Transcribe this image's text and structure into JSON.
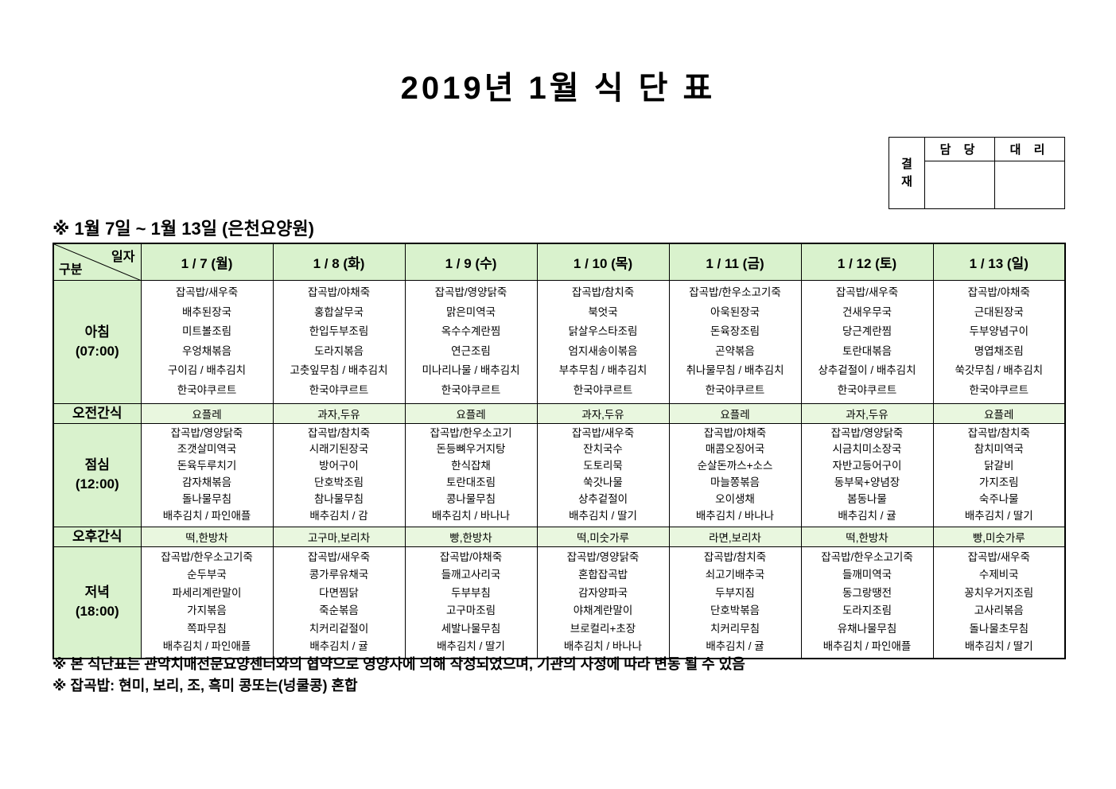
{
  "title": "2019년 1월 식 단 표",
  "approval": {
    "stamp_label": "결재",
    "columns": [
      "담 당",
      "대 리"
    ]
  },
  "subtitle": "※ 1월 7일 ~ 1월 13일 (은천요양원)",
  "colors": {
    "header_green": "#d9f2cd",
    "snack_green": "#e9f7df",
    "border": "#000000"
  },
  "table": {
    "corner_top": "일자",
    "corner_bottom": "구분",
    "days": [
      "1 / 7 (월)",
      "1 / 8 (화)",
      "1 / 9 (수)",
      "1 / 10 (목)",
      "1 / 11 (금)",
      "1 / 12 (토)",
      "1 / 13 (일)"
    ],
    "rows": [
      {
        "key": "breakfast",
        "type": "meal",
        "label": "아침",
        "time": "(07:00)",
        "cells": [
          [
            "잡곡밥/새우죽",
            "배추된장국",
            "미트볼조림",
            "우엉채볶음",
            "구이김 / 배추김치",
            "한국야쿠르트"
          ],
          [
            "잡곡밥/야채죽",
            "홍합살무국",
            "한입두부조림",
            "도라지볶음",
            "고춧잎무침 / 배추김치",
            "한국야쿠르트"
          ],
          [
            "잡곡밥/영양닭죽",
            "맑은미역국",
            "옥수수계란찜",
            "연근조림",
            "미나리나물 / 배추김치",
            "한국야쿠르트"
          ],
          [
            "잡곡밥/참치죽",
            "북엇국",
            "닭살우스타조림",
            "엄지새송이볶음",
            "부추무침 / 배추김치",
            "한국야쿠르트"
          ],
          [
            "잡곡밥/한우소고기죽",
            "아욱된장국",
            "돈육장조림",
            "곤약볶음",
            "취나물무침 / 배추김치",
            "한국야쿠르트"
          ],
          [
            "잡곡밥/새우죽",
            "건새우무국",
            "당근계란찜",
            "토란대볶음",
            "상추겉절이 / 배추김치",
            "한국야쿠르트"
          ],
          [
            "잡곡밥/야채죽",
            "근대된장국",
            "두부양념구이",
            "명엽채조림",
            "쑥갓무침 / 배추김치",
            "한국야쿠르트"
          ]
        ]
      },
      {
        "key": "am-snack",
        "type": "snack",
        "label": "오전간식",
        "cells": [
          "요플레",
          "과자,두유",
          "요플레",
          "과자,두유",
          "요플레",
          "과자,두유",
          "요플레"
        ]
      },
      {
        "key": "lunch",
        "type": "meal",
        "label": "점심",
        "time": "(12:00)",
        "cells": [
          [
            "잡곡밥/영양닭죽",
            "조갯살미역국",
            "돈육두루치기",
            "감자채볶음",
            "돌나물무침",
            "배추김치 / 파인애플"
          ],
          [
            "잡곡밥/참치죽",
            "시래기된장국",
            "방어구이",
            "단호박조림",
            "참나물무침",
            "배추김치 / 감"
          ],
          [
            "잡곡밥/한우소고기",
            "돈등뼈우거지탕",
            "한식잡채",
            "토란대조림",
            "콩나물무침",
            "배추김치 / 바나나"
          ],
          [
            "잡곡밥/새우죽",
            "잔치국수",
            "도토리묵",
            "쑥갓나물",
            "상추겉절이",
            "배추김치 / 딸기"
          ],
          [
            "잡곡밥/야채죽",
            "매콤오징어국",
            "순살돈까스+소스",
            "마늘쫑볶음",
            "오이생채",
            "배추김치 / 바나나"
          ],
          [
            "잡곡밥/영양닭죽",
            "시금치미소장국",
            "자반고등어구이",
            "동부묵+양념장",
            "봄동나물",
            "배추김치 / 귤"
          ],
          [
            "잡곡밥/참치죽",
            "참치미역국",
            "닭갈비",
            "가지조림",
            "숙주나물",
            "배추김치 / 딸기"
          ]
        ]
      },
      {
        "key": "pm-snack",
        "type": "snack",
        "label": "오후간식",
        "cells": [
          "떡,한방차",
          "고구마,보리차",
          "빵,한방차",
          "떡,미숫가루",
          "라면,보리차",
          "떡,한방차",
          "빵,미숫가루"
        ]
      },
      {
        "key": "dinner",
        "type": "meal",
        "label": "저녁",
        "time": "(18:00)",
        "cells": [
          [
            "잡곡밥/한우소고기죽",
            "순두부국",
            "파세리계란말이",
            "가지볶음",
            "쪽파무침",
            "배추김치 / 파인애플"
          ],
          [
            "잡곡밥/새우죽",
            "콩가루유채국",
            "다면찜닭",
            "죽순볶음",
            "치커리겉절이",
            "배추김치 / 귤"
          ],
          [
            "잡곡밥/야채죽",
            "들깨고사리국",
            "두부부침",
            "고구마조림",
            "세발나물무침",
            "배추김치 / 딸기"
          ],
          [
            "잡곡밥/영양닭죽",
            "혼합잡곡밥",
            "감자양파국",
            "야채계란말이",
            "브로컬리+초장",
            "배추김치 / 바나나"
          ],
          [
            "잡곡밥/참치죽",
            "쇠고기배추국",
            "두부지짐",
            "단호박볶음",
            "치커리무침",
            "배추김치 / 귤"
          ],
          [
            "잡곡밥/한우소고기죽",
            "들깨미역국",
            "동그랑땡전",
            "도라지조림",
            "유채나물무침",
            "배추김치 / 파인애플"
          ],
          [
            "잡곡밥/새우죽",
            "수제비국",
            "꽁치우거지조림",
            "고사리볶음",
            "돌나물초무침",
            "배추김치 / 딸기"
          ]
        ]
      }
    ]
  },
  "notes": [
    "※ 본 식단표는 관악치매전문요양센터와의 협약으로 영양사에 의해 작성되었으며, 기관의 사정에 따라 변동 될 수 있음",
    "※ 잡곡밥: 현미, 보리, 조, 흑미 콩또는(넝쿨콩) 혼합"
  ]
}
